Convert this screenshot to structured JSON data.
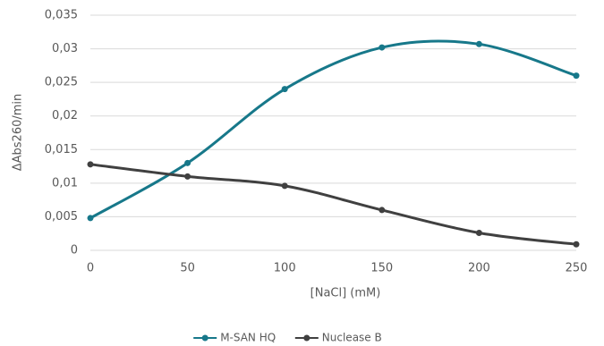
{
  "chart_data": {
    "type": "line",
    "x": [
      0,
      50,
      100,
      150,
      200,
      250
    ],
    "series": [
      {
        "name": "M-SAN HQ",
        "color": "#17788a",
        "values": [
          0.0048,
          0.013,
          0.024,
          0.0302,
          0.0307,
          0.026
        ]
      },
      {
        "name": "Nuclease B",
        "color": "#404040",
        "values": [
          0.0128,
          0.011,
          0.0096,
          0.006,
          0.0026,
          0.0009
        ]
      }
    ],
    "xlabel": "[NaCl] (mM)",
    "ylabel": "ΔAbs260/min",
    "xlim": [
      0,
      250
    ],
    "xticks": [
      0,
      50,
      100,
      150,
      200,
      250
    ],
    "ylim": [
      0,
      0.035
    ],
    "yticks": [
      0,
      {
        "value": 0.005,
        "label": "0,005"
      },
      {
        "value": 0.01,
        "label": "0,01"
      },
      {
        "value": 0.015,
        "label": "0,015"
      },
      {
        "value": 0.02,
        "label": "0,02"
      },
      {
        "value": 0.025,
        "label": "0,025"
      },
      {
        "value": 0.03,
        "label": "0,03"
      },
      {
        "value": 0.035,
        "label": "0,035"
      }
    ],
    "grid": true,
    "smooth": true,
    "legend": "bottom"
  }
}
